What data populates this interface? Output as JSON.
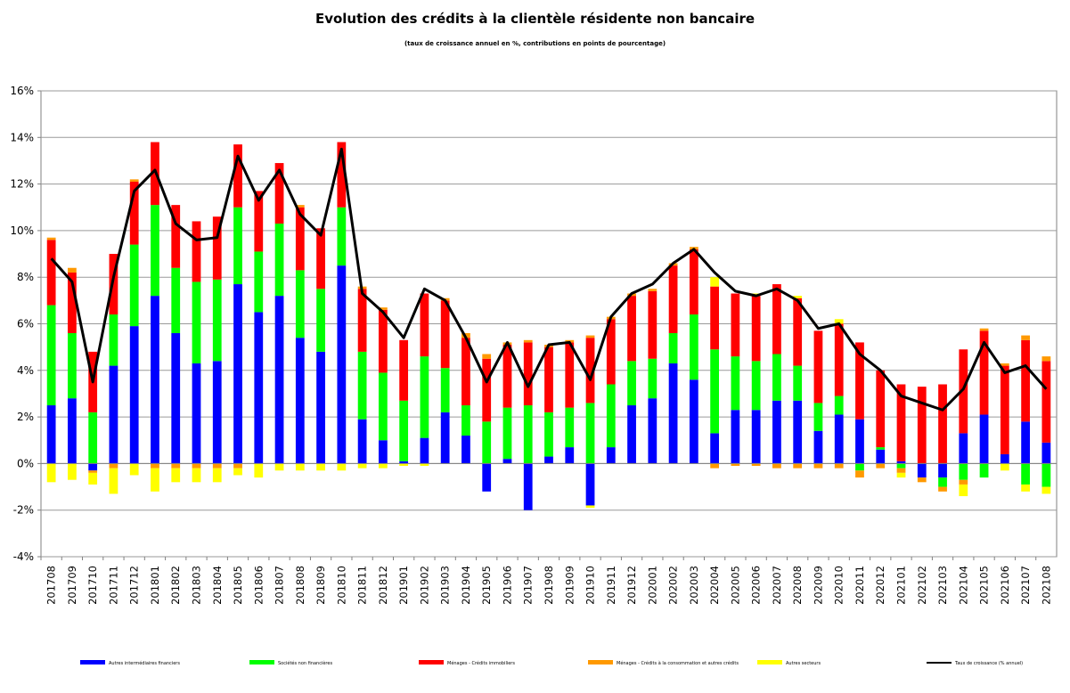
{
  "chart_data": {
    "type": "bar",
    "stacked": true,
    "title": "Evolution des crédits à la clientèle résidente non bancaire",
    "subtitle": "(taux de croissance annuel en %, contributions en points de pourcentage)",
    "ylim": [
      -4,
      16
    ],
    "yticks": [
      -4,
      -2,
      0,
      2,
      4,
      6,
      8,
      10,
      12,
      14,
      16
    ],
    "ytick_labels": [
      "-4%",
      "-2%",
      "0%",
      "2%",
      "4%",
      "6%",
      "8%",
      "10%",
      "12%",
      "14%",
      "16%"
    ],
    "grid": true,
    "legend_position": "bottom",
    "categories": [
      "201708",
      "201709",
      "201710",
      "201711",
      "201712",
      "201801",
      "201802",
      "201803",
      "201804",
      "201805",
      "201806",
      "201807",
      "201808",
      "201809",
      "201810",
      "201811",
      "201812",
      "201901",
      "201902",
      "201903",
      "201904",
      "201905",
      "201906",
      "201907",
      "201908",
      "201909",
      "201910",
      "201911",
      "201912",
      "202001",
      "202002",
      "202003",
      "202004",
      "202005",
      "202006",
      "202007",
      "202008",
      "202009",
      "202010",
      "202011",
      "202012",
      "202101",
      "202102",
      "202103",
      "202104",
      "202105",
      "202106",
      "202107",
      "202108"
    ],
    "series": [
      {
        "name": "Autres intermédiaires financiers",
        "color": "#0000ff",
        "values": [
          2.5,
          2.8,
          -0.3,
          4.2,
          5.9,
          7.2,
          5.6,
          4.3,
          4.4,
          7.7,
          6.5,
          7.2,
          5.4,
          4.8,
          8.5,
          1.9,
          1.0,
          0.1,
          1.1,
          2.2,
          1.2,
          -1.2,
          0.2,
          -2.0,
          0.3,
          0.7,
          -1.8,
          0.7,
          2.5,
          2.8,
          4.3,
          3.6,
          1.3,
          2.3,
          2.3,
          2.7,
          2.7,
          1.4,
          2.1,
          1.9,
          0.6,
          0.1,
          -0.6,
          -0.6,
          1.3,
          2.1,
          0.4,
          1.8,
          0.9
        ]
      },
      {
        "name": "Sociétés non financières",
        "color": "#00ff00",
        "values": [
          4.3,
          2.8,
          2.2,
          2.2,
          3.5,
          3.9,
          2.8,
          3.5,
          3.5,
          3.3,
          2.6,
          3.1,
          2.9,
          2.7,
          2.5,
          2.9,
          2.9,
          2.6,
          3.5,
          1.9,
          1.3,
          1.8,
          2.2,
          2.5,
          1.9,
          1.7,
          2.6,
          2.7,
          1.9,
          1.7,
          1.3,
          2.8,
          3.6,
          2.3,
          2.1,
          2.0,
          1.5,
          1.2,
          0.8,
          -0.3,
          0.1,
          -0.2,
          0.0,
          -0.4,
          -0.7,
          -0.6,
          0.0,
          -0.9,
          -1.0
        ]
      },
      {
        "name": "Ménages - Crédits immobiliers",
        "color": "#ff0000",
        "values": [
          2.8,
          2.6,
          2.6,
          2.6,
          2.7,
          2.7,
          2.7,
          2.6,
          2.7,
          2.7,
          2.6,
          2.6,
          2.7,
          2.6,
          2.8,
          2.7,
          2.7,
          2.6,
          2.7,
          2.9,
          2.9,
          2.7,
          2.7,
          2.7,
          2.8,
          2.8,
          2.8,
          2.8,
          2.8,
          2.9,
          2.9,
          2.8,
          2.7,
          2.7,
          2.8,
          3.0,
          2.9,
          3.1,
          3.1,
          3.3,
          3.3,
          3.3,
          3.3,
          3.4,
          3.6,
          3.6,
          3.8,
          3.5,
          3.5
        ]
      },
      {
        "name": "Ménages - Crédits à la consommation et autres crédits",
        "color": "#ff9900",
        "values": [
          0.1,
          0.2,
          -0.1,
          -0.2,
          0.1,
          -0.2,
          -0.2,
          -0.2,
          -0.2,
          -0.2,
          0.0,
          0.0,
          0.1,
          0.0,
          0.0,
          0.1,
          0.1,
          0.0,
          0.0,
          0.1,
          0.2,
          0.2,
          0.1,
          0.1,
          0.1,
          0.1,
          0.1,
          0.1,
          0.1,
          0.1,
          0.1,
          0.1,
          -0.2,
          -0.1,
          -0.1,
          -0.2,
          -0.2,
          -0.2,
          -0.2,
          -0.3,
          -0.2,
          -0.2,
          -0.2,
          -0.2,
          -0.2,
          0.1,
          0.1,
          0.2,
          0.2
        ]
      },
      {
        "name": "Autres secteurs",
        "color": "#ffff00",
        "values": [
          -0.8,
          -0.7,
          -0.5,
          -1.1,
          -0.5,
          -1.0,
          -0.6,
          -0.6,
          -0.6,
          -0.3,
          -0.6,
          -0.3,
          -0.3,
          -0.3,
          -0.3,
          -0.2,
          -0.2,
          -0.1,
          -0.1,
          0.0,
          0.0,
          0.0,
          0.0,
          0.0,
          0.0,
          0.0,
          -0.1,
          0.0,
          0.0,
          0.0,
          0.0,
          0.0,
          0.4,
          0.0,
          0.1,
          0.0,
          0.1,
          0.0,
          0.2,
          0.0,
          0.0,
          -0.2,
          0.0,
          0.0,
          -0.5,
          0.0,
          -0.3,
          -0.3,
          -0.3
        ]
      }
    ],
    "line": {
      "name": "Taux de croissance (% annuel)",
      "color": "#000000",
      "values": [
        8.8,
        7.8,
        3.5,
        8.0,
        11.7,
        12.6,
        10.3,
        9.6,
        9.7,
        13.2,
        11.3,
        12.6,
        10.7,
        9.8,
        13.5,
        7.3,
        6.5,
        5.4,
        7.5,
        7.0,
        5.4,
        3.5,
        5.2,
        3.3,
        5.1,
        5.2,
        3.6,
        6.3,
        7.3,
        7.7,
        8.6,
        9.2,
        8.2,
        7.4,
        7.2,
        7.5,
        7.0,
        5.8,
        6.0,
        4.7,
        4.0,
        2.9,
        2.6,
        2.3,
        3.2,
        5.2,
        3.9,
        4.2,
        3.2
      ]
    }
  }
}
